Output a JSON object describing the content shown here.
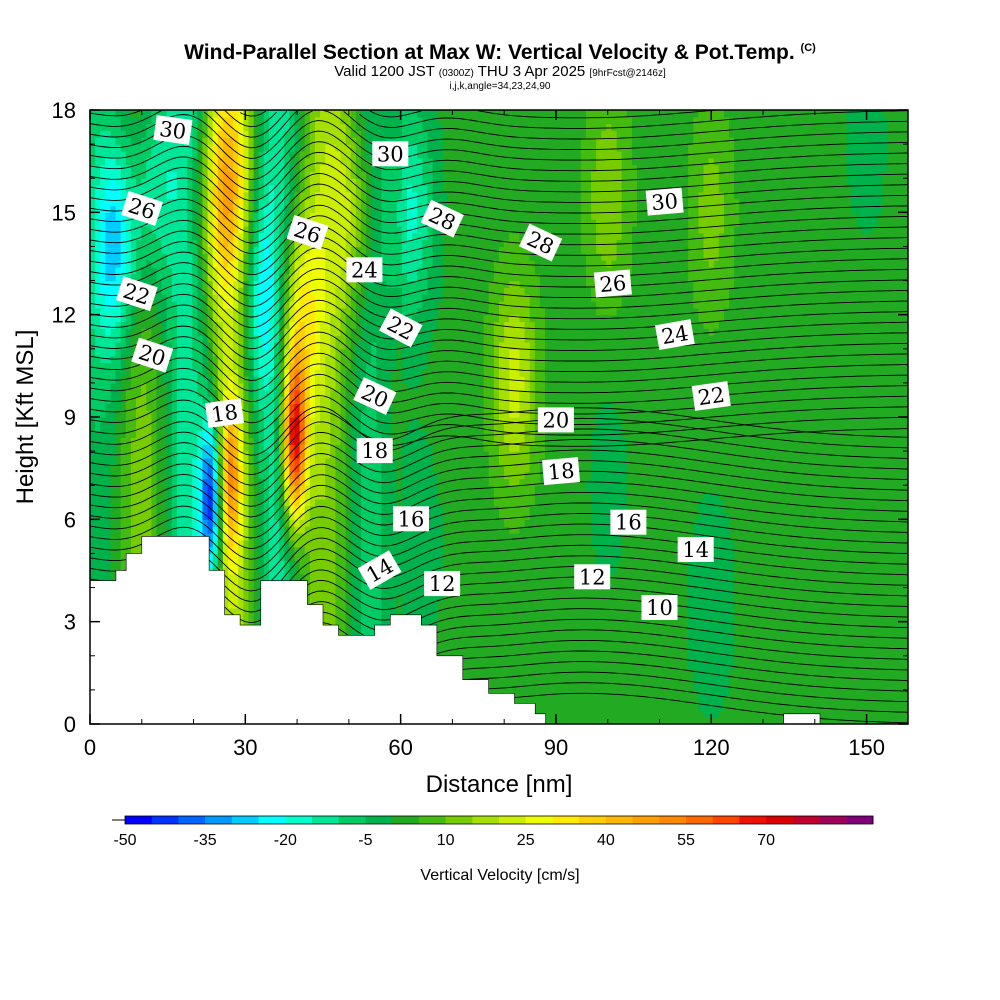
{
  "title": {
    "main": "Wind-Parallel Section at Max W: Vertical Velocity & Pot.Temp.",
    "main_units": "(C)",
    "valid_prefix": "Valid 1200 JST",
    "valid_utc": "(0300Z)",
    "valid_date": "THU 3 Apr 2025",
    "valid_fcst": "[9hrFcst@2146z]",
    "indices": "i,j,k,angle=34,23,24,90"
  },
  "chart_data": {
    "type": "heatmap",
    "xlabel": "Distance [nm]",
    "ylabel": "Height [Kft MSL]",
    "xlim": [
      0,
      158
    ],
    "ylim": [
      0,
      18
    ],
    "xticks": [
      0,
      30,
      60,
      90,
      120,
      150
    ],
    "yticks": [
      0,
      3,
      6,
      9,
      12,
      15,
      18
    ],
    "colorbar": {
      "label": "Vertical Velocity [cm/s]",
      "min": -50,
      "max": 85,
      "step": 5,
      "tick_labels": [
        "-50",
        "-35",
        "-20",
        "-5",
        "10",
        "25",
        "40",
        "55",
        "70"
      ],
      "colors": [
        "#0000ff",
        "#0033ff",
        "#0066ff",
        "#0099ff",
        "#00ccff",
        "#00ffff",
        "#00ffcc",
        "#00e699",
        "#00cc66",
        "#00b24c",
        "#22aa22",
        "#44bb11",
        "#77cc00",
        "#a6e000",
        "#ccee00",
        "#eeff00",
        "#ffea00",
        "#ffd000",
        "#ffb800",
        "#ffa000",
        "#ff8800",
        "#ff6a00",
        "#ff4400",
        "#ee1100",
        "#dd0000",
        "#c20030",
        "#a0005a",
        "#80007a"
      ]
    },
    "terrain_kft": [
      [
        0,
        4.2
      ],
      [
        5,
        4.5
      ],
      [
        7,
        5.0
      ],
      [
        10,
        5.5
      ],
      [
        23,
        4.5
      ],
      [
        26,
        3.2
      ],
      [
        29,
        2.9
      ],
      [
        33,
        4.2
      ],
      [
        42,
        3.5
      ],
      [
        45,
        2.9
      ],
      [
        48,
        2.6
      ],
      [
        55,
        2.9
      ],
      [
        58,
        3.2
      ],
      [
        64,
        2.9
      ],
      [
        67,
        2.0
      ],
      [
        72,
        1.3
      ],
      [
        77,
        0.9
      ],
      [
        82,
        0.6
      ],
      [
        86,
        0.3
      ],
      [
        88,
        0
      ],
      [
        133,
        0
      ],
      [
        134,
        0.3
      ],
      [
        140,
        0.3
      ],
      [
        141,
        0
      ],
      [
        158,
        0
      ]
    ],
    "velocity_features": [
      {
        "x": 23.5,
        "y": 6.6,
        "w": -48
      },
      {
        "x": 39.5,
        "y": 8.3,
        "w": 70
      },
      {
        "x": 27,
        "y": 7.2,
        "w": 38
      },
      {
        "x": 26,
        "y": 15.5,
        "w": 32
      },
      {
        "x": 40,
        "y": 12,
        "w": 30
      },
      {
        "x": 33,
        "y": 12.5,
        "w": -22
      },
      {
        "x": 5,
        "y": 14,
        "w": -28
      },
      {
        "x": 12,
        "y": 15.8,
        "w": -20
      },
      {
        "x": 50,
        "y": 15,
        "w": 18
      },
      {
        "x": 62,
        "y": 15,
        "w": -18
      },
      {
        "x": 82,
        "y": 10,
        "w": 20
      },
      {
        "x": 100,
        "y": 15.5,
        "w": 12
      },
      {
        "x": 120,
        "y": 15,
        "w": 10
      },
      {
        "x": 150,
        "y": 17,
        "w": -4
      },
      {
        "x": 120,
        "y": 3.5,
        "w": -6
      },
      {
        "x": 63,
        "y": 5,
        "w": -7
      },
      {
        "x": 100,
        "y": 7,
        "w": -4
      }
    ],
    "contour_labels": [
      {
        "text": "30",
        "x": 16,
        "y": 17.4,
        "angle": 8
      },
      {
        "text": "30",
        "x": 58,
        "y": 16.7,
        "angle": 0
      },
      {
        "text": "30",
        "x": 111,
        "y": 15.3,
        "angle": -5
      },
      {
        "text": "26",
        "x": 10,
        "y": 15.1,
        "angle": 18
      },
      {
        "text": "26",
        "x": 42,
        "y": 14.4,
        "angle": 18
      },
      {
        "text": "26",
        "x": 101,
        "y": 12.9,
        "angle": -5
      },
      {
        "text": "28",
        "x": 68,
        "y": 14.8,
        "angle": 25
      },
      {
        "text": "28",
        "x": 87,
        "y": 14.1,
        "angle": 25
      },
      {
        "text": "24",
        "x": 53,
        "y": 13.3,
        "angle": 0
      },
      {
        "text": "24",
        "x": 113,
        "y": 11.4,
        "angle": -10
      },
      {
        "text": "22",
        "x": 9,
        "y": 12.6,
        "angle": 18
      },
      {
        "text": "22",
        "x": 60,
        "y": 11.6,
        "angle": 28
      },
      {
        "text": "22",
        "x": 120,
        "y": 9.6,
        "angle": -8
      },
      {
        "text": "20",
        "x": 12,
        "y": 10.8,
        "angle": 18
      },
      {
        "text": "20",
        "x": 55,
        "y": 9.6,
        "angle": 25
      },
      {
        "text": "20",
        "x": 90,
        "y": 8.9,
        "angle": 0
      },
      {
        "text": "18",
        "x": 26,
        "y": 9.1,
        "angle": -8
      },
      {
        "text": "18",
        "x": 55,
        "y": 8.0,
        "angle": 0
      },
      {
        "text": "18",
        "x": 91,
        "y": 7.4,
        "angle": -5
      },
      {
        "text": "16",
        "x": 62,
        "y": 6.0,
        "angle": 0
      },
      {
        "text": "16",
        "x": 104,
        "y": 5.9,
        "angle": 0
      },
      {
        "text": "14",
        "x": 56,
        "y": 4.5,
        "angle": -30
      },
      {
        "text": "14",
        "x": 117,
        "y": 5.1,
        "angle": 0
      },
      {
        "text": "12",
        "x": 68,
        "y": 4.1,
        "angle": 0
      },
      {
        "text": "12",
        "x": 97,
        "y": 4.3,
        "angle": 0
      },
      {
        "text": "10",
        "x": 110,
        "y": 3.4,
        "angle": 0
      }
    ],
    "grid": false
  }
}
